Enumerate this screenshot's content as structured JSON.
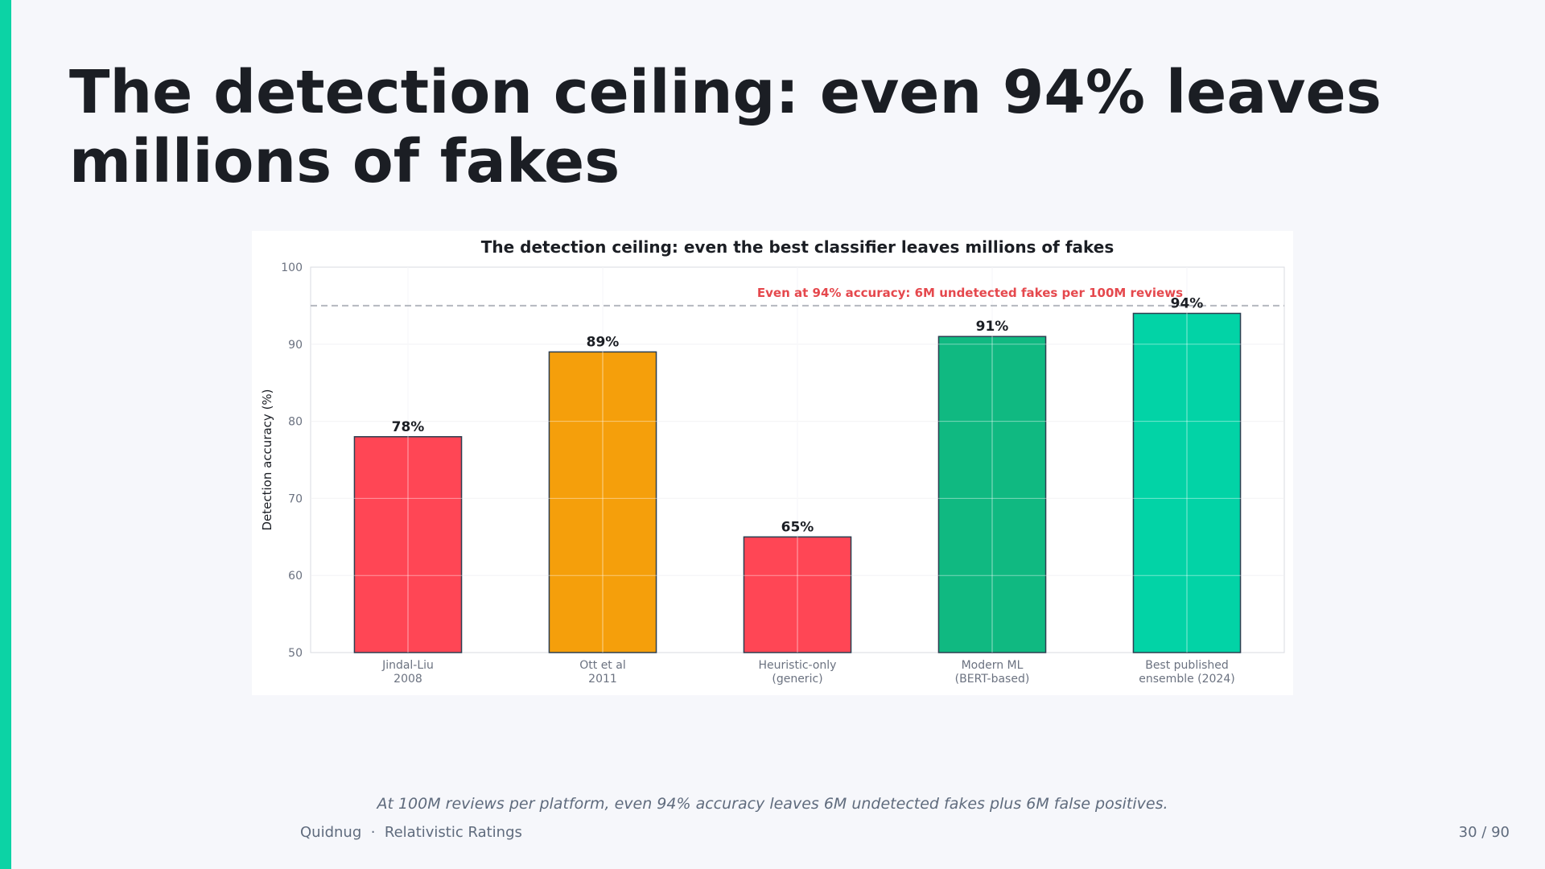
{
  "slide": {
    "title": "The detection ceiling: even 94% leaves millions of fakes",
    "caption": "At 100M reviews per platform, even 94% accuracy leaves 6M undetected fakes plus 6M false positives.",
    "footer": {
      "brand": "Quidnug",
      "separator": "·",
      "section": "Relativistic Ratings",
      "page": "30 / 90"
    },
    "accent_color": "#0cd3a5"
  },
  "chart_data": {
    "type": "bar",
    "title": "The detection ceiling: even the best classifier leaves millions of fakes",
    "ylabel": "Detection accuracy (%)",
    "xlabel": "",
    "ylim": [
      50,
      100
    ],
    "yticks": [
      50,
      60,
      70,
      80,
      90,
      100
    ],
    "grid": true,
    "categories": [
      [
        "Jindal-Liu",
        "2008"
      ],
      [
        "Ott et al",
        "2011"
      ],
      [
        "Heuristic-only",
        "(generic)"
      ],
      [
        "Modern ML",
        "(BERT-based)"
      ],
      [
        "Best published",
        "ensemble (2024)"
      ]
    ],
    "values": [
      78,
      89,
      65,
      91,
      94
    ],
    "value_labels": [
      "78%",
      "89%",
      "65%",
      "91%",
      "94%"
    ],
    "colors": [
      "#ff4655",
      "#f59f0b",
      "#ff4655",
      "#10b981",
      "#02d3a6"
    ],
    "reference_line": {
      "y": 95,
      "label": "Even at 94% accuracy: 6M undetected fakes per 100M reviews",
      "label_color": "#e5484d",
      "line_color": "#b4b8bf"
    }
  }
}
